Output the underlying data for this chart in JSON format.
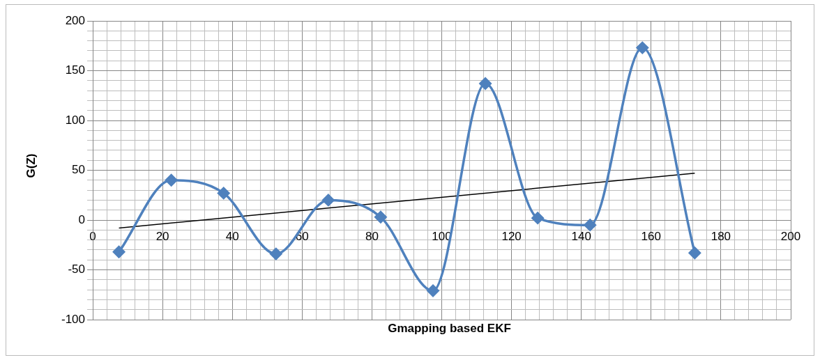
{
  "chart_data": {
    "type": "line",
    "xlabel": "Gmapping based EKF",
    "ylabel": "G(Z)",
    "xlim": [
      0,
      200
    ],
    "ylim": [
      -100,
      200
    ],
    "xticks": [
      0,
      {
        "value": 4,
        "label": null
      },
      {
        "value": 8,
        "label": null
      },
      {
        "value": 12,
        "label": null
      },
      {
        "value": 16,
        "label": null
      },
      20,
      {
        "value": 24,
        "label": null
      },
      {
        "value": 28,
        "label": null
      },
      {
        "value": 32,
        "label": null
      },
      {
        "value": 36,
        "label": null
      },
      40,
      {
        "value": 44,
        "label": null
      },
      {
        "value": 48,
        "label": null
      },
      {
        "value": 52,
        "label": null
      },
      {
        "value": 56,
        "label": null
      },
      60,
      {
        "value": 64,
        "label": null
      },
      {
        "value": 68,
        "label": null
      },
      {
        "value": 72,
        "label": null
      },
      {
        "value": 76,
        "label": null
      },
      80,
      {
        "value": 84,
        "label": null
      },
      {
        "value": 88,
        "label": null
      },
      {
        "value": 92,
        "label": null
      },
      {
        "value": 96,
        "label": null
      },
      100,
      {
        "value": 104,
        "label": null
      },
      {
        "value": 108,
        "label": null
      },
      {
        "value": 112,
        "label": null
      },
      {
        "value": 116,
        "label": null
      },
      120,
      {
        "value": 124,
        "label": null
      },
      {
        "value": 128,
        "label": null
      },
      {
        "value": 132,
        "label": null
      },
      {
        "value": 136,
        "label": null
      },
      140,
      {
        "value": 144,
        "label": null
      },
      {
        "value": 148,
        "label": null
      },
      {
        "value": 152,
        "label": null
      },
      {
        "value": 156,
        "label": null
      },
      160,
      {
        "value": 164,
        "label": null
      },
      {
        "value": 168,
        "label": null
      },
      {
        "value": 172,
        "label": null
      },
      {
        "value": 176,
        "label": null
      },
      180,
      {
        "value": 184,
        "label": null
      },
      {
        "value": 188,
        "label": null
      },
      {
        "value": 192,
        "label": null
      },
      {
        "value": 196,
        "label": null
      },
      200
    ],
    "yticks": [
      -100,
      {
        "value": -90,
        "label": null
      },
      {
        "value": -80,
        "label": null
      },
      {
        "value": -70,
        "label": null
      },
      {
        "value": -60,
        "label": null
      },
      -50,
      {
        "value": -40,
        "label": null
      },
      {
        "value": -30,
        "label": null
      },
      {
        "value": -20,
        "label": null
      },
      {
        "value": -10,
        "label": null
      },
      0,
      {
        "value": 10,
        "label": null
      },
      {
        "value": 20,
        "label": null
      },
      {
        "value": 30,
        "label": null
      },
      {
        "value": 40,
        "label": null
      },
      50,
      {
        "value": 60,
        "label": null
      },
      {
        "value": 70,
        "label": null
      },
      {
        "value": 80,
        "label": null
      },
      {
        "value": 90,
        "label": null
      },
      100,
      {
        "value": 110,
        "label": null
      },
      {
        "value": 120,
        "label": null
      },
      {
        "value": 130,
        "label": null
      },
      {
        "value": 140,
        "label": null
      },
      150,
      {
        "value": 160,
        "label": null
      },
      {
        "value": 170,
        "label": null
      },
      {
        "value": 180,
        "label": null
      },
      {
        "value": 190,
        "label": null
      },
      200
    ],
    "grid": true,
    "legend": false,
    "marker": "diamond",
    "series": [
      {
        "color": "#4f81bd",
        "x": [
          7.5,
          22.5,
          37.5,
          52.5,
          67.5,
          82.5,
          97.5,
          112.5,
          127.5,
          142.5,
          157.5,
          172.5
        ],
        "values": [
          -32,
          40,
          27,
          -34,
          20,
          3,
          -71,
          137,
          2,
          -5,
          173,
          -33
        ]
      },
      {
        "color": "#000000",
        "marker": "none",
        "x": [
          7.5,
          172.5
        ],
        "values": [
          -8,
          47
        ]
      }
    ]
  }
}
